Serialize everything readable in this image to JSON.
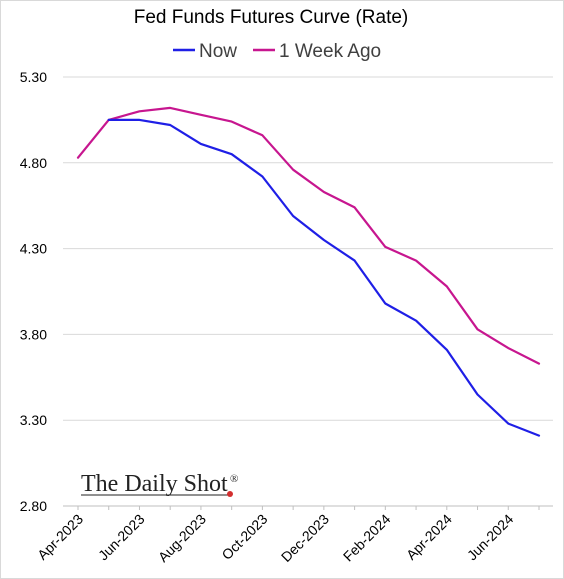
{
  "chart_data": {
    "type": "line",
    "title": "Fed Funds Futures Curve (Rate)",
    "xlabel": "",
    "ylabel": "",
    "ylim": [
      2.8,
      5.3
    ],
    "yticks": [
      "2.80",
      "3.30",
      "3.80",
      "4.30",
      "4.80",
      "5.30"
    ],
    "ytick_values": [
      2.8,
      3.3,
      3.8,
      4.3,
      4.8,
      5.3
    ],
    "x": [
      "2023-04",
      "2023-05",
      "2023-06",
      "2023-07",
      "2023-08",
      "2023-09",
      "2023-10",
      "2023-11",
      "2023-12",
      "2024-01",
      "2024-02",
      "2024-03",
      "2024-04",
      "2024-05",
      "2024-06",
      "2024-07"
    ],
    "xticks": [
      "Apr-2023",
      "Jun-2023",
      "Aug-2023",
      "Oct-2023",
      "Dec-2023",
      "Feb-2024",
      "Apr-2024",
      "Jun-2024"
    ],
    "xtick_indices": [
      0,
      2,
      4,
      6,
      8,
      10,
      12,
      14
    ],
    "grid": true,
    "legend_position": "top-center",
    "series": [
      {
        "name": "Now",
        "color": "#1f1fe6",
        "values": [
          null,
          5.05,
          5.05,
          5.02,
          4.91,
          4.85,
          4.72,
          4.49,
          4.35,
          4.23,
          3.98,
          3.88,
          3.71,
          3.45,
          3.28,
          3.21
        ]
      },
      {
        "name": "1 Week Ago",
        "color": "#c7168f",
        "values": [
          4.83,
          5.05,
          5.1,
          5.12,
          5.08,
          5.04,
          4.96,
          4.76,
          4.63,
          4.54,
          4.31,
          4.23,
          4.08,
          3.83,
          3.72,
          3.63
        ]
      }
    ]
  },
  "watermark": {
    "text": "The Daily Shot",
    "mark": "®"
  }
}
